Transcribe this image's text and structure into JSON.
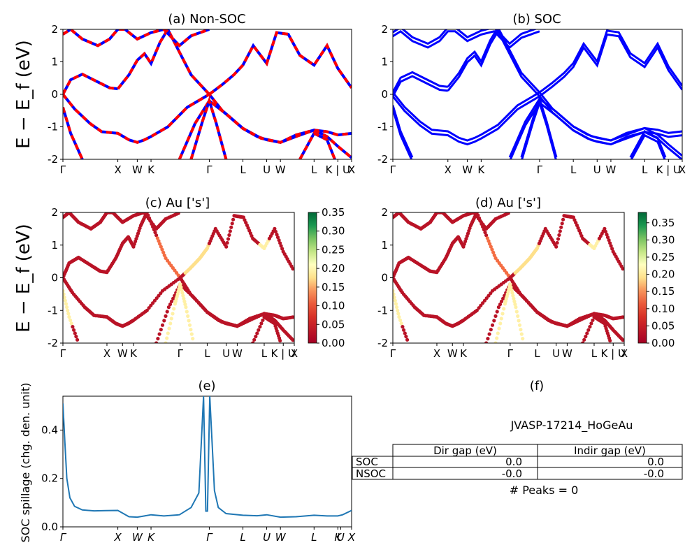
{
  "colors": {
    "nonsoc_blue": "#0000ff",
    "nonsoc_red": "#ff0000",
    "soc": "#0000ff",
    "spillage": "#1f77b4",
    "colormap": "RdYlGn"
  },
  "ylabel_band": "E − E_f (eV)",
  "ylabel_spillage": "SOC spillage (chg. den. unit)",
  "kpath_labels": [
    "Γ",
    "X",
    "W",
    "K",
    "Γ",
    "L",
    "U",
    "W",
    "L",
    "K | U",
    "X"
  ],
  "kpath_labels_e": [
    "Γ",
    "X",
    "W",
    "K",
    "Γ",
    "L",
    "U",
    "W",
    "L",
    "K",
    "U",
    "X"
  ],
  "panels": {
    "a": {
      "title": "(a) Non-SOC"
    },
    "b": {
      "title": "(b) SOC"
    },
    "c": {
      "title": "(c)  Au ['s']"
    },
    "d": {
      "title": "(d) Au ['s']"
    },
    "e": {
      "title": "(e)"
    },
    "f": {
      "title": "(f)"
    }
  },
  "colorbar_c": {
    "ticks": [
      "0.00",
      "0.05",
      "0.10",
      "0.15",
      "0.20",
      "0.25",
      "0.30",
      "0.35"
    ]
  },
  "colorbar_d": {
    "ticks": [
      "0.00",
      "0.05",
      "0.10",
      "0.15",
      "0.20",
      "0.25",
      "0.30",
      "0.35"
    ]
  },
  "info": {
    "material_id": "JVASP-17214_HoGeAu",
    "table_headers": [
      "",
      "Dir gap (eV)",
      "Indir gap (eV)"
    ],
    "table_rows": [
      [
        "SOC",
        "0.0",
        "0.0"
      ],
      [
        "NSOC",
        "-0.0",
        "-0.0"
      ]
    ],
    "peaks": "# Peaks = 0"
  },
  "chart_data": [
    {
      "type": "line",
      "id": "a",
      "title": "(a) Non-SOC",
      "ylabel": "E − E_f (eV)",
      "ylim": [
        -2,
        2
      ],
      "yticks": [
        -2,
        -1,
        0,
        1,
        2
      ],
      "xlim": [
        0,
        10
      ],
      "xticks": [
        0,
        1.414,
        1.914,
        2.268,
        3.768,
        4.634,
        5.246,
        5.599,
        6.465,
        7.077,
        7.431
      ],
      "xticklabels": [
        "Γ",
        "X",
        "W",
        "K",
        "Γ",
        "L",
        "U",
        "W",
        "L",
        "K | U",
        "X"
      ],
      "series": [
        {
          "x": [
            0,
            0.3,
            0.7,
            1.0,
            1.414,
            1.7,
            1.914,
            2.1,
            2.268,
            2.7,
            3.2,
            3.768,
            4.1,
            4.634,
            5.0,
            5.246,
            5.599,
            6.0,
            6.465,
            6.8,
            7.077,
            7.431
          ],
          "y": [
            0,
            -0.45,
            -0.9,
            -1.15,
            -1.2,
            -1.4,
            -1.48,
            -1.4,
            -1.3,
            -1.0,
            -0.4,
            0,
            -0.5,
            -1.05,
            -1.3,
            -1.4,
            -1.48,
            -1.3,
            -1.1,
            -1.15,
            -1.25,
            -1.2
          ]
        },
        {
          "x": [
            0,
            0.2,
            0.5,
            0.9,
            1.2,
            1.414
          ],
          "y": [
            0,
            0.45,
            0.62,
            0.38,
            0.2,
            0.17
          ]
        },
        {
          "x": [
            1.414,
            1.7,
            1.914,
            2.1,
            2.268,
            2.5,
            2.7,
            3.0,
            3.3,
            3.768
          ],
          "y": [
            0.17,
            0.6,
            1.05,
            1.25,
            0.95,
            1.6,
            2.0,
            1.3,
            0.6,
            0
          ]
        },
        {
          "x": [
            3.768,
            4.1,
            4.4,
            4.634,
            4.9,
            5.246,
            5.5,
            5.8,
            6.1,
            6.465,
            6.8,
            7.077,
            7.431
          ],
          "y": [
            0,
            0.3,
            0.6,
            0.9,
            1.5,
            0.95,
            1.9,
            1.85,
            1.2,
            0.9,
            1.5,
            0.8,
            0.2
          ]
        },
        {
          "x": [
            0,
            0.2,
            0.5,
            0.9,
            1.2,
            1.414,
            1.6,
            1.914,
            2.268,
            2.6,
            3.0,
            3.3,
            3.768
          ],
          "y": [
            1.85,
            2.0,
            1.7,
            1.5,
            1.7,
            2.0,
            2.0,
            1.7,
            1.9,
            2.0,
            1.5,
            1.8,
            2.0
          ]
        },
        {
          "x": [
            3.0,
            3.4,
            3.768,
            4.2,
            4.634,
            5.1,
            5.599,
            6.0,
            6.465,
            6.8,
            7.077,
            7.431
          ],
          "y": [
            -2.0,
            -0.9,
            -0.2,
            -0.6,
            -1.05,
            -1.35,
            -1.48,
            -1.25,
            -1.1,
            -1.3,
            -1.6,
            -1.95
          ]
        },
        {
          "x": [
            0,
            0.2,
            0.5
          ],
          "y": [
            -0.4,
            -1.2,
            -2.0
          ]
        },
        {
          "x": [
            3.3,
            3.6,
            3.768,
            3.95,
            4.2
          ],
          "y": [
            -2.0,
            -0.8,
            -0.2,
            -0.9,
            -2.0
          ]
        },
        {
          "x": [
            6.1,
            6.465,
            6.8,
            7.0
          ],
          "y": [
            -2.0,
            -1.2,
            -1.4,
            -2.0
          ]
        }
      ]
    },
    {
      "type": "line",
      "id": "b",
      "title": "(b) SOC",
      "ylim": [
        -2,
        2
      ],
      "yticks": [
        -2,
        -1,
        0,
        1,
        2
      ],
      "xticklabels": [
        "Γ",
        "X",
        "W",
        "K",
        "Γ",
        "L",
        "U",
        "W",
        "L",
        "K | U",
        "X"
      ],
      "note": "SOC bands follow non-SOC bands with small spin-orbit splittings"
    },
    {
      "type": "scatter",
      "id": "c",
      "title": "(c)  Au ['s']",
      "ylim": [
        -2,
        2
      ],
      "colorbar_range": [
        0,
        0.35
      ],
      "colormap": "RdYlGn",
      "note": "Band points colored by Au s-orbital projection (mostly ~0.02; ~0.15-0.20 near Γ-L and L; ~0.3 near Γ below Ef)"
    },
    {
      "type": "scatter",
      "id": "d",
      "title": "(d) Au ['s']",
      "ylim": [
        -2,
        2
      ],
      "colorbar_range": [
        0,
        0.38
      ],
      "colormap": "RdYlGn"
    },
    {
      "type": "line",
      "id": "e",
      "title": "(e)",
      "ylabel": "SOC spillage (chg. den. unit)",
      "ylim": [
        0,
        0.54
      ],
      "yticks": [
        0.0,
        0.2,
        0.4
      ],
      "xticklabels": [
        "Γ",
        "X",
        "W",
        "K",
        "Γ",
        "L",
        "U",
        "W",
        "L",
        "K",
        "U",
        "X"
      ],
      "series": [
        {
          "x": [
            0,
            0.05,
            0.1,
            0.18,
            0.3,
            0.5,
            0.8,
            1.1,
            1.414,
            1.7,
            1.914,
            2.1,
            2.268,
            2.6,
            3.0,
            3.3,
            3.5,
            3.62,
            3.68,
            3.72,
            3.78,
            3.84,
            3.9,
            4.0,
            4.2,
            4.634,
            5.0,
            5.246,
            5.599,
            6.0,
            6.465,
            6.8,
            7.077,
            7.2,
            7.431
          ],
          "y": [
            0.51,
            0.35,
            0.2,
            0.12,
            0.085,
            0.07,
            0.066,
            0.067,
            0.068,
            0.042,
            0.04,
            0.045,
            0.05,
            0.045,
            0.05,
            0.08,
            0.14,
            0.54,
            0.065,
            0.065,
            0.54,
            0.35,
            0.15,
            0.08,
            0.055,
            0.048,
            0.046,
            0.05,
            0.04,
            0.042,
            0.048,
            0.045,
            0.045,
            0.05,
            0.068
          ]
        }
      ]
    }
  ]
}
